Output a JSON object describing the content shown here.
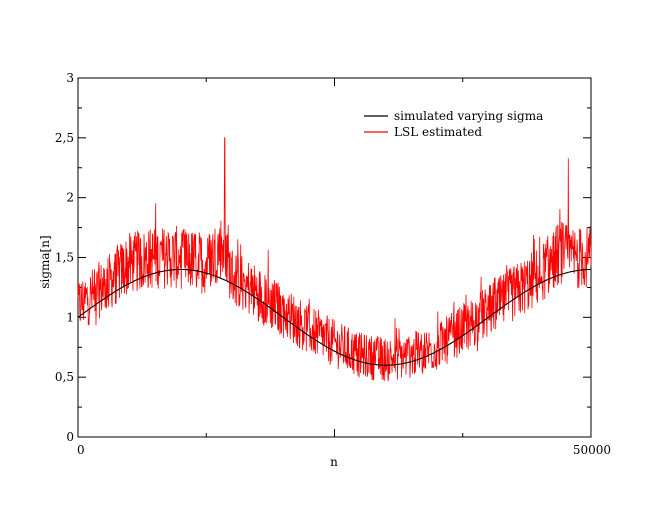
{
  "chart_data": {
    "type": "line",
    "title": "",
    "xlabel": "n",
    "ylabel": "sigma[n]",
    "xlim": [
      0,
      50000
    ],
    "ylim": [
      0,
      3
    ],
    "grid": false,
    "legend_position": "top-right",
    "x_ticks": [
      {
        "value": 0,
        "label": "0"
      },
      {
        "value": 25000,
        "label": ""
      },
      {
        "value": 50000,
        "label": "50000"
      }
    ],
    "y_ticks": [
      {
        "value": 0,
        "label": "0"
      },
      {
        "value": 0.5,
        "label": "0,5"
      },
      {
        "value": 1,
        "label": "1"
      },
      {
        "value": 1.5,
        "label": "1,5"
      },
      {
        "value": 2,
        "label": "2"
      },
      {
        "value": 2.5,
        "label": "2,5"
      },
      {
        "value": 3,
        "label": "3"
      }
    ],
    "series": [
      {
        "name": "simulated varying sigma",
        "color": "#000000",
        "function": "1 + 0.4*sin(2*pi*n/40000)",
        "x": [
          0,
          2500,
          5000,
          7500,
          10000,
          12500,
          15000,
          17500,
          20000,
          22500,
          25000,
          27500,
          30000,
          32500,
          35000,
          37500,
          40000,
          42500,
          45000,
          47500,
          50000
        ],
        "y": [
          1.0,
          1.153,
          1.283,
          1.37,
          1.4,
          1.37,
          1.283,
          1.153,
          1.0,
          0.847,
          0.717,
          0.63,
          0.6,
          0.63,
          0.717,
          0.847,
          1.0,
          1.153,
          1.283,
          1.37,
          1.4
        ]
      },
      {
        "name": "LSL estimated",
        "color": "#ff0000",
        "x": [
          0,
          2500,
          5000,
          7500,
          10000,
          12500,
          14000,
          15000,
          17500,
          20000,
          22500,
          25000,
          27500,
          30000,
          32500,
          35000,
          37500,
          40000,
          42500,
          45000,
          47000,
          48000,
          50000
        ],
        "y": [
          1.1,
          1.25,
          1.45,
          1.5,
          1.5,
          1.45,
          1.6,
          1.35,
          1.2,
          1.05,
          0.9,
          0.78,
          0.68,
          0.65,
          0.68,
          0.75,
          0.9,
          1.05,
          1.2,
          1.35,
          1.55,
          1.5,
          1.5
        ],
        "noise_amplitude": 0.22,
        "peaks": [
          {
            "x": 14300,
            "y": 2.5
          },
          {
            "x": 47800,
            "y": 2.33
          }
        ]
      }
    ]
  }
}
